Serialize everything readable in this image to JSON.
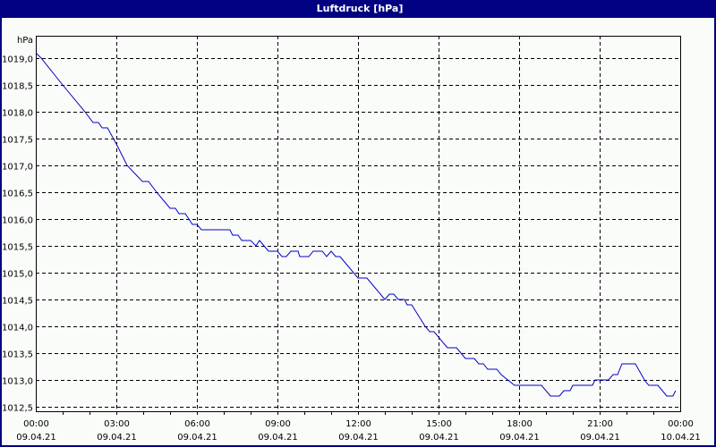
{
  "window": {
    "title": "Luftdruck [hPa]",
    "title_bar_color": "#000080",
    "background_color": "#fafcfa"
  },
  "chart_data": {
    "type": "line",
    "title": "Luftdruck [hPa]",
    "xlabel": "",
    "ylabel": "hPa",
    "unit_label": "hPa",
    "ylim": [
      1012.4,
      1019.4
    ],
    "xlim_hours": [
      0,
      24
    ],
    "grid": true,
    "grid_style": "dashed",
    "legend": null,
    "line_color": "#0000cc",
    "y_ticks": [
      "1019,0",
      "1018,5",
      "1018,0",
      "1017,5",
      "1017,0",
      "1016,5",
      "1016,0",
      "1015,5",
      "1015,0",
      "1014,5",
      "1014,0",
      "1013,5",
      "1013,0",
      "1012,5"
    ],
    "y_tick_values": [
      1019.0,
      1018.5,
      1018.0,
      1017.5,
      1017.0,
      1016.5,
      1016.0,
      1015.5,
      1015.0,
      1014.5,
      1014.0,
      1013.5,
      1013.0,
      1012.5
    ],
    "x_ticks": [
      {
        "time": "00:00",
        "date": "09.04.21",
        "hours": 0
      },
      {
        "time": "03:00",
        "date": "09.04.21",
        "hours": 3
      },
      {
        "time": "06:00",
        "date": "09.04.21",
        "hours": 6
      },
      {
        "time": "09:00",
        "date": "09.04.21",
        "hours": 9
      },
      {
        "time": "12:00",
        "date": "09.04.21",
        "hours": 12
      },
      {
        "time": "15:00",
        "date": "09.04.21",
        "hours": 15
      },
      {
        "time": "18:00",
        "date": "09.04.21",
        "hours": 18
      },
      {
        "time": "21:00",
        "date": "09.04.21",
        "hours": 21
      },
      {
        "time": "00:00",
        "date": "10.04.21",
        "hours": 24
      }
    ],
    "series": [
      {
        "name": "Luftdruck",
        "points": [
          [
            0.0,
            1019.1
          ],
          [
            0.2,
            1019.0
          ],
          [
            1.0,
            1018.5
          ],
          [
            1.83,
            1018.0
          ],
          [
            2.13,
            1017.8
          ],
          [
            2.33,
            1017.8
          ],
          [
            2.47,
            1017.7
          ],
          [
            2.67,
            1017.7
          ],
          [
            3.0,
            1017.4
          ],
          [
            3.4,
            1017.0
          ],
          [
            3.97,
            1016.7
          ],
          [
            4.2,
            1016.7
          ],
          [
            4.5,
            1016.5
          ],
          [
            5.0,
            1016.2
          ],
          [
            5.2,
            1016.2
          ],
          [
            5.33,
            1016.1
          ],
          [
            5.57,
            1016.1
          ],
          [
            5.83,
            1015.9
          ],
          [
            6.0,
            1015.9
          ],
          [
            6.17,
            1015.8
          ],
          [
            7.23,
            1015.8
          ],
          [
            7.33,
            1015.7
          ],
          [
            7.53,
            1015.7
          ],
          [
            7.67,
            1015.6
          ],
          [
            8.0,
            1015.6
          ],
          [
            8.2,
            1015.5
          ],
          [
            8.33,
            1015.6
          ],
          [
            8.67,
            1015.4
          ],
          [
            9.0,
            1015.4
          ],
          [
            9.17,
            1015.3
          ],
          [
            9.33,
            1015.3
          ],
          [
            9.5,
            1015.4
          ],
          [
            9.77,
            1015.4
          ],
          [
            9.83,
            1015.3
          ],
          [
            10.17,
            1015.3
          ],
          [
            10.33,
            1015.4
          ],
          [
            10.67,
            1015.4
          ],
          [
            10.83,
            1015.3
          ],
          [
            11.0,
            1015.4
          ],
          [
            11.17,
            1015.3
          ],
          [
            11.33,
            1015.3
          ],
          [
            12.0,
            1014.9
          ],
          [
            12.33,
            1014.9
          ],
          [
            13.0,
            1014.5
          ],
          [
            13.17,
            1014.6
          ],
          [
            13.33,
            1014.6
          ],
          [
            13.5,
            1014.5
          ],
          [
            13.73,
            1014.5
          ],
          [
            13.83,
            1014.4
          ],
          [
            14.0,
            1014.4
          ],
          [
            14.5,
            1014.0
          ],
          [
            14.67,
            1013.9
          ],
          [
            14.83,
            1013.9
          ],
          [
            15.33,
            1013.6
          ],
          [
            15.67,
            1013.6
          ],
          [
            16.0,
            1013.4
          ],
          [
            16.33,
            1013.4
          ],
          [
            16.5,
            1013.3
          ],
          [
            16.67,
            1013.3
          ],
          [
            16.83,
            1013.2
          ],
          [
            17.17,
            1013.2
          ],
          [
            17.33,
            1013.1
          ],
          [
            17.83,
            1012.9
          ],
          [
            18.83,
            1012.9
          ],
          [
            19.17,
            1012.7
          ],
          [
            19.5,
            1012.7
          ],
          [
            19.67,
            1012.8
          ],
          [
            19.9,
            1012.8
          ],
          [
            20.0,
            1012.9
          ],
          [
            20.73,
            1012.9
          ],
          [
            20.83,
            1013.0
          ],
          [
            21.33,
            1013.0
          ],
          [
            21.5,
            1013.1
          ],
          [
            21.67,
            1013.1
          ],
          [
            21.83,
            1013.3
          ],
          [
            22.33,
            1013.3
          ],
          [
            22.67,
            1013.0
          ],
          [
            22.83,
            1012.9
          ],
          [
            23.17,
            1012.9
          ],
          [
            23.5,
            1012.7
          ],
          [
            23.73,
            1012.7
          ],
          [
            23.83,
            1012.8
          ]
        ]
      }
    ]
  }
}
